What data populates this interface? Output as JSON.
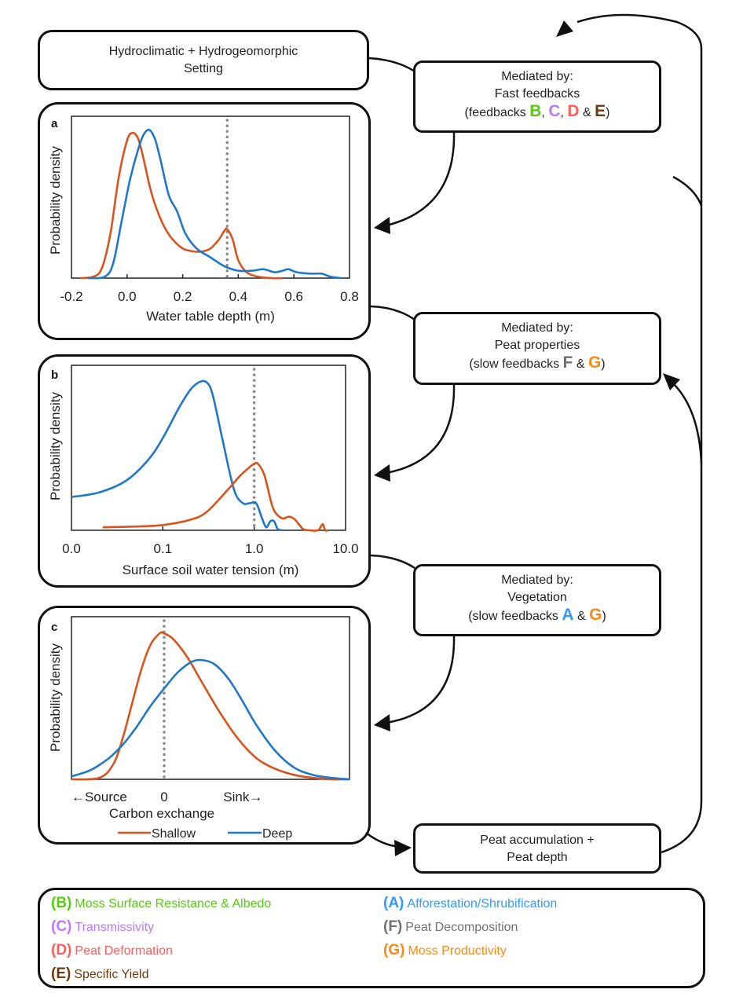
{
  "boxes": {
    "setting": {
      "line1": "Hydroclimatic + Hydrogeomorphic",
      "line2": "Setting"
    },
    "fast": {
      "line1": "Mediated by:",
      "line2": "Fast feedbacks",
      "prefix": "(feedbacks ",
      "codes": [
        "B",
        "C",
        "D",
        "E"
      ],
      "sep1": ", ",
      "sep2": ", ",
      "sep3": " & ",
      "suffix": ")"
    },
    "peat_props": {
      "line1": "Mediated by:",
      "line2": "Peat properties",
      "prefix": "(slow feedbacks ",
      "codes": [
        "F",
        "G"
      ],
      "sep1": " & ",
      "suffix": ")"
    },
    "vegetation": {
      "line1": "Mediated by:",
      "line2": "Vegetation",
      "prefix": "(slow feedbacks ",
      "codes": [
        "A",
        "G"
      ],
      "sep1": " & ",
      "suffix": ")"
    },
    "accumulation": {
      "line1": "Peat accumulation +",
      "line2": "Peat depth"
    }
  },
  "feedback_colors": {
    "A": "#3399FF",
    "B": "#55CC11",
    "C": "#BB77FF",
    "D": "#FF5B5B",
    "E": "#6B3A0F",
    "F": "#707070",
    "G": "#FF8811"
  },
  "legend": {
    "left": [
      {
        "code": "(B)",
        "key": "B",
        "label": "Moss Surface Resistance & Albedo"
      },
      {
        "code": "(C)",
        "key": "C",
        "label": "Transmissivity"
      },
      {
        "code": "(D)",
        "key": "D",
        "label": "Peat Deformation"
      },
      {
        "code": "(E)",
        "key": "E",
        "label": "Specific Yield"
      }
    ],
    "right": [
      {
        "code": "(A)",
        "key": "A",
        "label": "Afforestation/Shrubification"
      },
      {
        "code": "(F)",
        "key": "F",
        "label": "Peat Decomposition"
      },
      {
        "code": "(G)",
        "key": "G",
        "label": "Moss Productivity"
      }
    ]
  },
  "chart_data": [
    {
      "panel": "a",
      "type": "line",
      "title": "",
      "xlabel": "Water table depth  (m)",
      "ylabel": "Probability density",
      "xlim": [
        -0.2,
        0.8
      ],
      "ylim": [
        0,
        1.05
      ],
      "xticks": [
        "-0.2",
        "0.0",
        "0.2",
        "0.4",
        "0.6",
        "0.8"
      ],
      "xtick_values": [
        -0.2,
        0.0,
        0.2,
        0.4,
        0.6,
        0.8
      ],
      "vline": 0.36,
      "series": [
        {
          "name": "Shallow",
          "color": "#D9531E",
          "x": [
            -0.17,
            -0.12,
            -0.09,
            -0.06,
            -0.03,
            0.0,
            0.02,
            0.04,
            0.06,
            0.08,
            0.1,
            0.13,
            0.16,
            0.2,
            0.24,
            0.27,
            0.3,
            0.33,
            0.35,
            0.36,
            0.38,
            0.4,
            0.43,
            0.47,
            0.52,
            0.56
          ],
          "y": [
            0.0,
            0.01,
            0.07,
            0.3,
            0.68,
            0.93,
            0.98,
            0.94,
            0.8,
            0.63,
            0.5,
            0.36,
            0.27,
            0.2,
            0.18,
            0.18,
            0.2,
            0.26,
            0.32,
            0.33,
            0.26,
            0.12,
            0.04,
            0.01,
            0.0,
            0.0
          ]
        },
        {
          "name": "Deep",
          "color": "#1F77C8",
          "x": [
            -0.14,
            -0.08,
            -0.05,
            -0.02,
            0.01,
            0.04,
            0.06,
            0.08,
            0.1,
            0.12,
            0.15,
            0.18,
            0.21,
            0.25,
            0.3,
            0.35,
            0.4,
            0.45,
            0.49,
            0.53,
            0.56,
            0.58,
            0.61,
            0.66,
            0.7,
            0.73,
            0.77
          ],
          "y": [
            0.0,
            0.01,
            0.1,
            0.38,
            0.66,
            0.87,
            0.97,
            1.0,
            0.94,
            0.8,
            0.56,
            0.45,
            0.3,
            0.2,
            0.14,
            0.08,
            0.05,
            0.05,
            0.06,
            0.04,
            0.05,
            0.06,
            0.04,
            0.03,
            0.03,
            0.01,
            0.0
          ]
        }
      ],
      "legend": "bottom"
    },
    {
      "panel": "b",
      "type": "line",
      "xscale": "log",
      "xlabel": "Surface soil water tension (m)",
      "ylabel": "Probability density",
      "xlim": [
        0.01,
        10.0
      ],
      "ylim": [
        0,
        1.05
      ],
      "xticks": [
        "0.0",
        "0.1",
        "1.0",
        "10.0"
      ],
      "xtick_values": [
        0.01,
        0.1,
        1.0,
        10.0
      ],
      "vline": 1.0,
      "series": [
        {
          "name": "Deep",
          "color": "#1F77C8",
          "x": [
            0.01,
            0.02,
            0.04,
            0.07,
            0.1,
            0.15,
            0.2,
            0.25,
            0.3,
            0.35,
            0.45,
            0.6,
            0.75,
            0.9,
            1.05,
            1.2,
            1.35,
            1.5,
            1.65,
            1.8,
            2.0
          ],
          "y": [
            0.22,
            0.25,
            0.33,
            0.47,
            0.61,
            0.81,
            0.93,
            0.98,
            0.98,
            0.9,
            0.6,
            0.27,
            0.18,
            0.18,
            0.18,
            0.09,
            0.02,
            0.06,
            0.06,
            0.01,
            0.0
          ]
        },
        {
          "name": "Shallow",
          "color": "#D9531E",
          "x": [
            0.022,
            0.05,
            0.1,
            0.2,
            0.3,
            0.5,
            0.7,
            0.9,
            1.0,
            1.1,
            1.3,
            1.6,
            2.0,
            2.4,
            2.8,
            3.4,
            4.0,
            5.0,
            5.6,
            6.0,
            6.5
          ],
          "y": [
            0.02,
            0.025,
            0.035,
            0.07,
            0.12,
            0.26,
            0.36,
            0.42,
            0.44,
            0.44,
            0.36,
            0.15,
            0.08,
            0.09,
            0.07,
            0.01,
            0.0,
            0.0,
            0.04,
            0.0,
            0.0
          ]
        }
      ],
      "legend": "bottom"
    },
    {
      "panel": "c",
      "type": "line",
      "xlabel": "Carbon exchange",
      "ylabel": "Probability density",
      "xlim": [
        -1.0,
        2.0
      ],
      "ylim": [
        0,
        1.05
      ],
      "xticks": [
        "←Source",
        "0",
        "Sink→"
      ],
      "xtick_values": [
        -0.7,
        0.0,
        0.85
      ],
      "vline": 0.0,
      "series": [
        {
          "name": "Shallow",
          "color": "#D9531E",
          "x": [
            -1.0,
            -0.7,
            -0.55,
            -0.45,
            -0.35,
            -0.25,
            -0.15,
            -0.05,
            0.0,
            0.1,
            0.25,
            0.4,
            0.6,
            0.8,
            1.0,
            1.2,
            1.4,
            1.6,
            1.8,
            2.0
          ],
          "y": [
            0.0,
            0.01,
            0.1,
            0.27,
            0.5,
            0.73,
            0.9,
            0.98,
            0.98,
            0.94,
            0.82,
            0.66,
            0.45,
            0.27,
            0.14,
            0.07,
            0.03,
            0.01,
            0.0,
            0.0
          ]
        },
        {
          "name": "Deep",
          "color": "#1F77C8",
          "x": [
            -1.0,
            -0.8,
            -0.6,
            -0.45,
            -0.3,
            -0.15,
            0.0,
            0.15,
            0.3,
            0.42,
            0.55,
            0.7,
            0.85,
            1.0,
            1.2,
            1.4,
            1.6,
            1.8,
            2.0
          ],
          "y": [
            0.02,
            0.06,
            0.14,
            0.23,
            0.35,
            0.49,
            0.61,
            0.72,
            0.79,
            0.8,
            0.77,
            0.67,
            0.52,
            0.36,
            0.19,
            0.08,
            0.03,
            0.01,
            0.0
          ]
        }
      ],
      "legend": "bottom"
    }
  ],
  "panels": {
    "a": {
      "letter": "a",
      "ylabel": "Probability density",
      "xlabel": "Water table depth  (m)"
    },
    "b": {
      "letter": "b",
      "ylabel": "Probability density",
      "xlabel": "Surface soil water tension (m)"
    },
    "c": {
      "letter": "c",
      "ylabel": "Probability density",
      "xlabel": "Carbon exchange"
    }
  },
  "series_legend": [
    {
      "name": "Shallow",
      "color": "#D9531E"
    },
    {
      "name": "Deep",
      "color": "#1F77C8"
    }
  ]
}
